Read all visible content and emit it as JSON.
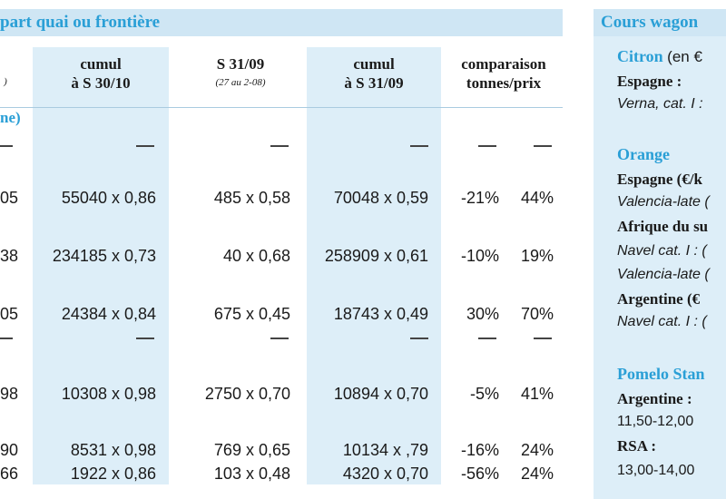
{
  "left_title": "part quai ou frontière",
  "right_title": "Cours wagon",
  "headers": {
    "col0_sub": ")",
    "cumul_3010": [
      "cumul",
      "à S 30/10"
    ],
    "s3109": [
      "S 31/09",
      "(27 au 2-08)"
    ],
    "cumul_3109": [
      "cumul",
      "à S 31/09"
    ],
    "comparaison": [
      "comparaison",
      "tonnes/prix"
    ]
  },
  "unit_label": "ne)",
  "rows": [
    {
      "c0": "05",
      "c1": "55040 x 0,86",
      "c2": "485 x 0,58",
      "c3": "70048 x 0,59",
      "t": "-21%",
      "p": "44%"
    },
    {
      "c0": "38",
      "c1": "234185 x 0,73",
      "c2": "40 x 0,68",
      "c3": "258909 x 0,61",
      "t": "-10%",
      "p": "19%"
    },
    {
      "c0": "05",
      "c1": "24384 x 0,84",
      "c2": "675 x 0,45",
      "c3": "18743 x 0,49",
      "t": "30%",
      "p": "70%"
    },
    {
      "c0": "98",
      "c1": "10308 x 0,98",
      "c2": "2750 x 0,70",
      "c3": "10894 x 0,70",
      "t": "-5%",
      "p": "41%"
    },
    {
      "c0": "90",
      "c1": "8531 x 0,98",
      "c2": "769 x 0,65",
      "c3": "10134 x ,79",
      "t": "-16%",
      "p": "24%"
    },
    {
      "c0": "66",
      "c1": "1922 x 0,86",
      "c2": "103 x 0,48",
      "c3": "4320 x 0,70",
      "t": "-56%",
      "p": "24%"
    }
  ],
  "right": {
    "citron_head": "Citron",
    "citron_unit": "(en €",
    "espagne": "Espagne :",
    "verna": "Verna, cat. I :",
    "orange_head": "Orange",
    "espagne2": "Espagne (€/k",
    "valencia1": "Valencia-late (",
    "afrique": "Afrique du su",
    "navel1": "Navel cat. I : (",
    "valencia2": "Valencia-late (",
    "argentine1": "Argentine (€",
    "navel2": "Navel cat. I : (",
    "pomelo_head": "Pomelo Stan",
    "argentine2": "Argentine :",
    "price1": "11,50-12,00",
    "rsa": "RSA :",
    "price2": "13,00-14,00"
  }
}
